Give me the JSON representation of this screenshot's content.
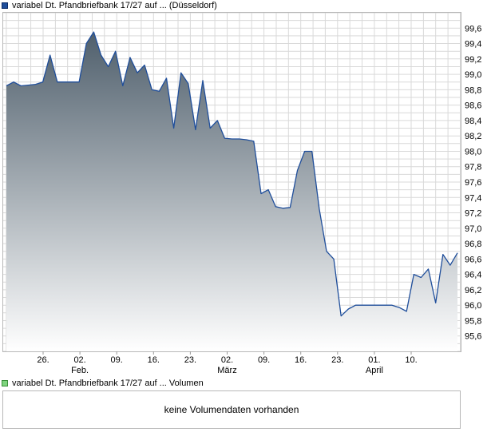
{
  "legend_price": "variabel Dt. Pfandbriefbank 17/27 auf ... (Düsseldorf)",
  "legend_volume": "variabel Dt. Pfandbriefbank 17/27 auf ... Volumen",
  "volume_message": "keine Volumendaten vorhanden",
  "colors": {
    "line": "#1f4e9b",
    "area_top": "#4f5f6c",
    "area_bottom": "#ffffff",
    "grid": "#d9d9d9",
    "frame": "#b8b8b8"
  },
  "chart_data": {
    "type": "area",
    "y_axis_position": "right",
    "ylim": [
      95.4,
      99.8
    ],
    "y_ticks": [
      "95,6",
      "95,8",
      "96,0",
      "96,2",
      "96,4",
      "96,6",
      "96,8",
      "97,0",
      "97,2",
      "97,4",
      "97,6",
      "97,8",
      "98,0",
      "98,2",
      "98,4",
      "98,6",
      "98,8",
      "99,0",
      "99,2",
      "99,4",
      "99,6"
    ],
    "x_ticks": [
      "26.",
      "02.",
      "09.",
      "16.",
      "23.",
      "02.",
      "09.",
      "16.",
      "23.",
      "01.",
      "10."
    ],
    "month_labels": [
      {
        "label": "Feb.",
        "tick": 1
      },
      {
        "label": "März",
        "tick": 5
      },
      {
        "label": "April",
        "tick": 9
      }
    ],
    "grid": true,
    "series": [
      {
        "values": [
          98.85,
          98.9,
          98.85,
          98.86,
          98.87,
          98.9,
          99.25,
          98.9,
          98.9,
          98.9,
          98.9,
          99.4,
          99.55,
          99.25,
          99.1,
          99.3,
          98.85,
          99.22,
          99.02,
          99.12,
          98.8,
          98.78,
          98.95,
          98.3,
          99.02,
          98.88,
          98.28,
          98.92,
          98.3,
          98.4,
          98.17,
          98.16,
          98.16,
          98.15,
          98.13,
          97.45,
          97.5,
          97.28,
          97.26,
          97.27,
          97.75,
          98.0,
          98.0,
          97.25,
          96.7,
          96.6,
          95.86,
          95.95,
          96.0,
          96.0,
          96.0,
          96.0,
          96.0,
          96.0,
          95.97,
          95.92,
          96.4,
          96.36,
          96.47,
          96.03,
          96.66,
          96.52,
          96.68
        ]
      }
    ]
  }
}
